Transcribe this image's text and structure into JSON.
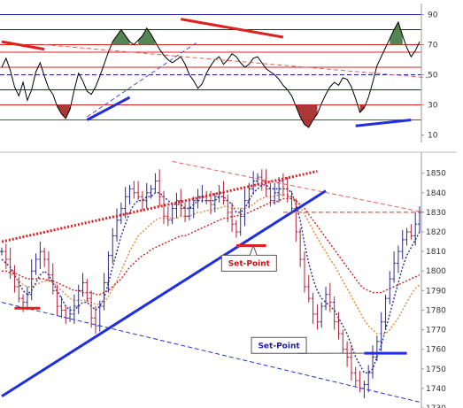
{
  "chart_data": [
    {
      "type": "line",
      "panel": "oscillator",
      "title": "",
      "xlabel": "",
      "ylabel": "",
      "ylim": [
        5,
        95
      ],
      "y_ticks": [
        90,
        70,
        50,
        30,
        10
      ],
      "reference_lines": [
        {
          "value": 90,
          "color": "#1a1aa6",
          "style": "solid"
        },
        {
          "value": 80,
          "color": "#1a1aa6",
          "style": "solid"
        },
        {
          "value": 70,
          "color": "#d42020",
          "style": "solid"
        },
        {
          "value": 65,
          "color": "#d42020",
          "style": "solid"
        },
        {
          "value": 55,
          "color": "#d42020",
          "style": "solid"
        },
        {
          "value": 50,
          "color": "#1a1aa6",
          "style": "dashed"
        },
        {
          "value": 40,
          "color": "#1a1aa6",
          "style": "solid"
        },
        {
          "value": 30,
          "color": "#d42020",
          "style": "solid"
        },
        {
          "value": 20,
          "color": "#d42020",
          "style": "solid"
        }
      ],
      "series": [
        {
          "color": "#000000",
          "values": [
            55,
            61,
            53,
            42,
            36,
            45,
            33,
            40,
            52,
            58,
            49,
            41,
            37,
            29,
            24,
            21,
            27,
            40,
            51,
            46,
            39,
            37,
            42,
            49,
            57,
            65,
            72,
            76,
            80,
            76,
            72,
            70,
            73,
            76,
            81,
            77,
            72,
            67,
            63,
            60,
            58,
            60,
            62,
            57,
            50,
            46,
            41,
            44,
            51,
            56,
            60,
            62,
            57,
            60,
            64,
            62,
            58,
            55,
            57,
            61,
            62,
            58,
            54,
            52,
            50,
            47,
            43,
            40,
            36,
            29,
            22,
            17,
            15,
            20,
            24,
            31,
            37,
            42,
            45,
            43,
            48,
            47,
            42,
            34,
            25,
            28,
            35,
            45,
            56,
            62,
            68,
            74,
            80,
            85,
            76,
            68,
            62,
            66,
            72
          ],
          "fill_above": {
            "level": 70,
            "color": "#4c7d4c"
          },
          "fill_below": {
            "level": 30,
            "color": "#a82c2c"
          }
        }
      ],
      "trendlines": [
        {
          "from": [
            0,
            72
          ],
          "to": [
            10,
            67
          ],
          "color": "#e02020",
          "style": "solid",
          "weight": "thick"
        },
        {
          "from": [
            20,
            20
          ],
          "to": [
            30,
            35
          ],
          "color": "#1f2ee0",
          "style": "solid",
          "weight": "thick"
        },
        {
          "from": [
            20,
            22
          ],
          "to": [
            46,
            72
          ],
          "color": "#4455cc",
          "style": "dashed",
          "weight": "thin"
        },
        {
          "from": [
            42,
            87
          ],
          "to": [
            66,
            75
          ],
          "color": "#e02020",
          "style": "solid",
          "weight": "thick"
        },
        {
          "from": [
            10,
            70
          ],
          "to": [
            100,
            48
          ],
          "color": "#e06060",
          "style": "dashed",
          "weight": "thin"
        },
        {
          "from": [
            83,
            16
          ],
          "to": [
            96,
            20
          ],
          "color": "#1f2ee0",
          "style": "solid",
          "weight": "thick"
        }
      ]
    },
    {
      "type": "candlestick",
      "panel": "price",
      "title": "",
      "xlabel": "",
      "ylabel": "",
      "ylim": [
        1730,
        1858
      ],
      "y_ticks": [
        1850,
        1840,
        1830,
        1820,
        1810,
        1800,
        1790,
        1780,
        1770,
        1760,
        1750,
        1740,
        1730
      ],
      "series": [
        {
          "name": "",
          "kind": "close",
          "color": "#b0203a",
          "values": [
            1810,
            1806,
            1800,
            1792,
            1786,
            1784,
            1788,
            1800,
            1806,
            1810,
            1806,
            1798,
            1790,
            1782,
            1780,
            1776,
            1778,
            1782,
            1790,
            1794,
            1786,
            1776,
            1772,
            1782,
            1794,
            1808,
            1818,
            1826,
            1832,
            1838,
            1842,
            1840,
            1838,
            1836,
            1840,
            1842,
            1846,
            1838,
            1828,
            1826,
            1832,
            1836,
            1832,
            1828,
            1832,
            1836,
            1838,
            1838,
            1836,
            1834,
            1838,
            1840,
            1836,
            1830,
            1824,
            1820,
            1828,
            1836,
            1842,
            1846,
            1848,
            1846,
            1842,
            1836,
            1840,
            1846,
            1842,
            1838,
            1832,
            1820,
            1806,
            1792,
            1786,
            1778,
            1774,
            1782,
            1788,
            1784,
            1774,
            1768,
            1760,
            1756,
            1748,
            1744,
            1740,
            1742,
            1748,
            1756,
            1764,
            1774,
            1786,
            1796,
            1804,
            1810,
            1816,
            1820,
            1818,
            1824,
            1830
          ],
          "bull_color": "#2a2a8a"
        },
        {
          "name": "",
          "kind": "moving-average",
          "color": "#2b2b95",
          "style": "dotted",
          "values": [
            1806,
            1804,
            1802,
            1798,
            1794,
            1790,
            1788,
            1790,
            1794,
            1798,
            1800,
            1798,
            1794,
            1790,
            1786,
            1782,
            1780,
            1780,
            1782,
            1784,
            1784,
            1782,
            1780,
            1782,
            1786,
            1794,
            1802,
            1810,
            1818,
            1824,
            1830,
            1834,
            1836,
            1836,
            1838,
            1838,
            1840,
            1840,
            1838,
            1836,
            1834,
            1834,
            1834,
            1832,
            1832,
            1834,
            1836,
            1836,
            1836,
            1836,
            1836,
            1838,
            1838,
            1836,
            1834,
            1830,
            1830,
            1832,
            1836,
            1840,
            1842,
            1844,
            1844,
            1842,
            1842,
            1842,
            1842,
            1842,
            1840,
            1834,
            1826,
            1814,
            1804,
            1796,
            1790,
            1786,
            1784,
            1782,
            1780,
            1776,
            1772,
            1768,
            1762,
            1756,
            1752,
            1748,
            1748,
            1750,
            1756,
            1762,
            1770,
            1778,
            1786,
            1794,
            1802,
            1808,
            1812,
            1816,
            1820
          ]
        },
        {
          "name": "",
          "kind": "moving-average",
          "color": "#e08a3a",
          "style": "dotted",
          "values": [
            1800,
            1800,
            1799,
            1797,
            1795,
            1793,
            1792,
            1792,
            1793,
            1794,
            1795,
            1795,
            1794,
            1792,
            1790,
            1788,
            1786,
            1785,
            1785,
            1785,
            1785,
            1784,
            1783,
            1783,
            1784,
            1787,
            1791,
            1795,
            1800,
            1805,
            1810,
            1814,
            1818,
            1820,
            1822,
            1824,
            1826,
            1827,
            1827,
            1827,
            1827,
            1827,
            1828,
            1828,
            1828,
            1829,
            1830,
            1830,
            1831,
            1831,
            1832,
            1832,
            1833,
            1833,
            1832,
            1832,
            1832,
            1832,
            1833,
            1834,
            1836,
            1837,
            1838,
            1838,
            1838,
            1839,
            1839,
            1839,
            1838,
            1836,
            1833,
            1829,
            1825,
            1821,
            1817,
            1813,
            1810,
            1806,
            1803,
            1799,
            1795,
            1791,
            1787,
            1783,
            1779,
            1775,
            1772,
            1770,
            1768,
            1768,
            1768,
            1770,
            1773,
            1776,
            1780,
            1784,
            1788,
            1791,
            1793
          ]
        },
        {
          "name": "",
          "kind": "moving-average",
          "color": "#d22222",
          "style": "dotted",
          "values": [
            1800,
            1800,
            1799,
            1799,
            1798,
            1797,
            1796,
            1796,
            1796,
            1796,
            1796,
            1795,
            1795,
            1794,
            1793,
            1792,
            1791,
            1790,
            1790,
            1789,
            1789,
            1789,
            1788,
            1788,
            1789,
            1790,
            1792,
            1794,
            1796,
            1799,
            1802,
            1804,
            1806,
            1808,
            1809,
            1811,
            1812,
            1813,
            1814,
            1815,
            1816,
            1817,
            1818,
            1818,
            1819,
            1820,
            1821,
            1822,
            1823,
            1824,
            1825,
            1826,
            1827,
            1827,
            1828,
            1828,
            1829,
            1829,
            1830,
            1831,
            1832,
            1833,
            1834,
            1835,
            1835,
            1836,
            1837,
            1837,
            1837,
            1836,
            1834,
            1832,
            1829,
            1826,
            1823,
            1820,
            1817,
            1814,
            1811,
            1808,
            1805,
            1802,
            1799,
            1796,
            1793,
            1791,
            1790,
            1789,
            1789,
            1789,
            1790,
            1791,
            1792,
            1793,
            1794,
            1795,
            1796,
            1797,
            1798
          ]
        }
      ],
      "trendlines": [
        {
          "from": [
            0,
            1815
          ],
          "to": [
            74,
            1851
          ],
          "color": "#e02020",
          "style": "dotted",
          "weight": "thick"
        },
        {
          "from": [
            0,
            1784
          ],
          "to": [
            98,
            1733
          ],
          "color": "#2233cc",
          "style": "dashed",
          "weight": "thin"
        },
        {
          "from": [
            0,
            1736
          ],
          "to": [
            76,
            1841
          ],
          "color": "#1f2ee0",
          "style": "solid",
          "weight": "thick"
        },
        {
          "from": [
            40,
            1856
          ],
          "to": [
            99,
            1830
          ],
          "color": "#e06060",
          "style": "dashed",
          "weight": "thin"
        },
        {
          "from": [
            66,
            1830
          ],
          "to": [
            99,
            1830
          ],
          "color": "#c03030",
          "style": "dashed",
          "weight": "thin"
        },
        {
          "from": [
            3,
            1781
          ],
          "to": [
            9,
            1781
          ],
          "color": "#e02020",
          "style": "solid",
          "weight": "thick"
        },
        {
          "from": [
            55,
            1813
          ],
          "to": [
            62,
            1813
          ],
          "color": "#e02020",
          "style": "solid",
          "weight": "thick"
        },
        {
          "from": [
            85,
            1758
          ],
          "to": [
            95,
            1758
          ],
          "color": "#1f2ee0",
          "style": "solid",
          "weight": "thick"
        }
      ],
      "annotations": [
        {
          "text": "Set-Point",
          "at": [
            58,
            1804
          ],
          "pointer_to": [
            59,
            1813
          ],
          "text_color": "#cc1111"
        },
        {
          "text": "Set-Point",
          "at": [
            65,
            1762
          ],
          "pointer_to": [
            85,
            1758
          ],
          "text_color": "#1a1aa6"
        }
      ]
    }
  ]
}
